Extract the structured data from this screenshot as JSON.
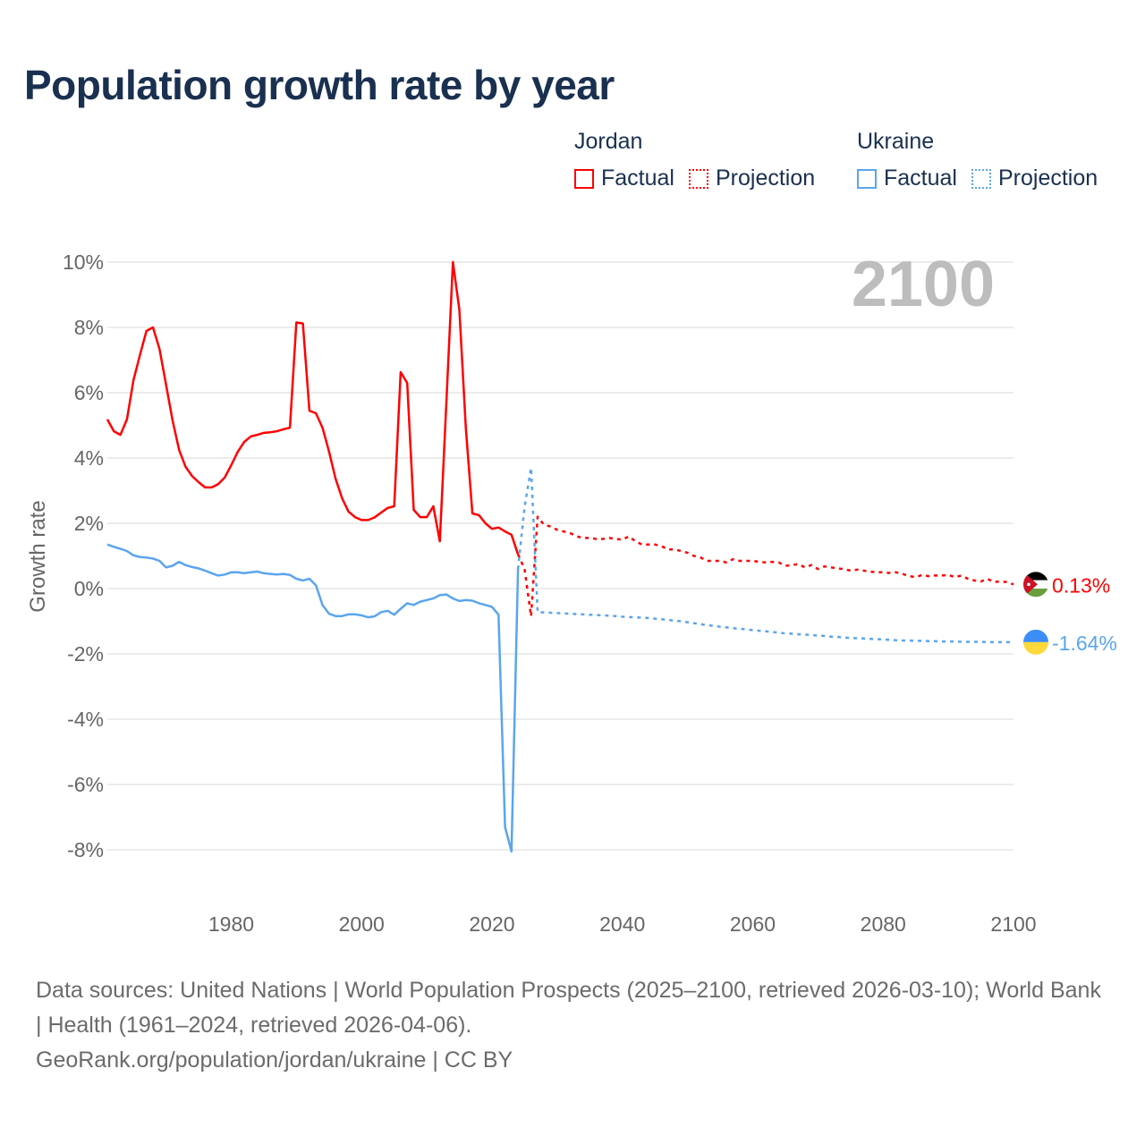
{
  "title": "Population growth rate by year",
  "legend": [
    {
      "country": "Jordan",
      "factual": "Factual",
      "projection": "Projection",
      "color": "#ff0000"
    },
    {
      "country": "Ukraine",
      "factual": "Factual",
      "projection": "Projection",
      "color": "#5aa5ee"
    }
  ],
  "year_display": "2100",
  "footer": {
    "sources": "Data sources: United Nations | World Population Prospects (2025–2100, retrieved 2026-03-10); World Bank | Health (1961–2024, retrieved 2026-04-06).",
    "credit": "GeoRank.org/population/jordan/ukraine | CC BY"
  },
  "chart_data": {
    "type": "line",
    "title": "Population growth rate by year",
    "xlabel": "",
    "ylabel": "Growth rate",
    "xlim": [
      1961,
      2100
    ],
    "ylim": [
      -9,
      10
    ],
    "yticks": [
      10,
      8,
      6,
      4,
      2,
      0,
      -2,
      -4,
      -6,
      -8
    ],
    "ytick_labels": [
      "10%",
      "8%",
      "6%",
      "4%",
      "2%",
      "0%",
      "-2%",
      "-4%",
      "-6%",
      "-8%"
    ],
    "xticks": [
      1980,
      2000,
      2020,
      2040,
      2060,
      2080,
      2100
    ],
    "xtick_labels": [
      "1980",
      "2000",
      "2020",
      "2040",
      "2060",
      "2080",
      "2100"
    ],
    "grid": true,
    "legend_position": "top-right",
    "series": [
      {
        "name": "Jordan",
        "kind": "factual",
        "start_year": 1961,
        "color": "#ff0000",
        "values": [
          5.18,
          4.82,
          4.71,
          5.18,
          6.38,
          7.15,
          7.89,
          8.0,
          7.34,
          6.25,
          5.15,
          4.25,
          3.73,
          3.45,
          3.26,
          3.1,
          3.1,
          3.2,
          3.4,
          3.78,
          4.19,
          4.49,
          4.66,
          4.71,
          4.77,
          4.79,
          4.82,
          4.88,
          4.93,
          8.15,
          8.12,
          5.45,
          5.37,
          4.93,
          4.2,
          3.37,
          2.77,
          2.36,
          2.19,
          2.1,
          2.1,
          2.18,
          2.33,
          2.47,
          2.52,
          6.63,
          6.3,
          2.41,
          2.19,
          2.19,
          2.52,
          1.45,
          5.7,
          10.0,
          8.55,
          4.9,
          2.3,
          2.25,
          2.0,
          1.83,
          1.87,
          1.75,
          1.65,
          1.05
        ]
      },
      {
        "name": "Jordan",
        "kind": "projection",
        "start_year": 2024,
        "color": "#ff0000",
        "values": [
          1.05,
          0.6,
          -0.85,
          2.2,
          1.95,
          1.9,
          1.8,
          1.75,
          1.7,
          1.6,
          1.55,
          1.55,
          1.52,
          1.52,
          1.55,
          1.52,
          1.5,
          1.6,
          1.45,
          1.35,
          1.35,
          1.35,
          1.3,
          1.2,
          1.2,
          1.15,
          1.1,
          1.0,
          0.95,
          0.85,
          0.85,
          0.85,
          0.8,
          0.9,
          0.85,
          0.85,
          0.85,
          0.82,
          0.8,
          0.82,
          0.8,
          0.7,
          0.72,
          0.75,
          0.65,
          0.72,
          0.6,
          0.68,
          0.65,
          0.62,
          0.6,
          0.55,
          0.58,
          0.55,
          0.52,
          0.5,
          0.5,
          0.48,
          0.5,
          0.45,
          0.38,
          0.35,
          0.42,
          0.38,
          0.4,
          0.4,
          0.42,
          0.35,
          0.4,
          0.3,
          0.25,
          0.22,
          0.3,
          0.2,
          0.22,
          0.2,
          0.13
        ]
      },
      {
        "name": "Ukraine",
        "kind": "factual",
        "start_year": 1961,
        "color": "#5aa5ee",
        "values": [
          1.35,
          1.28,
          1.22,
          1.15,
          1.02,
          0.97,
          0.95,
          0.92,
          0.85,
          0.65,
          0.7,
          0.82,
          0.72,
          0.66,
          0.62,
          0.55,
          0.47,
          0.4,
          0.43,
          0.5,
          0.5,
          0.47,
          0.5,
          0.52,
          0.47,
          0.45,
          0.43,
          0.45,
          0.42,
          0.3,
          0.25,
          0.3,
          0.1,
          -0.5,
          -0.77,
          -0.84,
          -0.84,
          -0.79,
          -0.79,
          -0.82,
          -0.88,
          -0.85,
          -0.72,
          -0.68,
          -0.8,
          -0.62,
          -0.45,
          -0.5,
          -0.4,
          -0.35,
          -0.3,
          -0.2,
          -0.18,
          -0.3,
          -0.38,
          -0.35,
          -0.37,
          -0.45,
          -0.5,
          -0.56,
          -0.8,
          -7.3,
          -8.05,
          0.6
        ]
      },
      {
        "name": "Ukraine",
        "kind": "projection",
        "start_year": 2024,
        "color": "#5aa5ee",
        "values": [
          0.6,
          2.5,
          3.7,
          -0.72,
          -0.73,
          -0.74,
          -0.75,
          -0.76,
          -0.77,
          -0.78,
          -0.79,
          -0.8,
          -0.81,
          -0.82,
          -0.83,
          -0.84,
          -0.86,
          -0.87,
          -0.88,
          -0.89,
          -0.9,
          -0.92,
          -0.94,
          -0.96,
          -0.98,
          -1.0,
          -1.03,
          -1.06,
          -1.09,
          -1.12,
          -1.14,
          -1.17,
          -1.19,
          -1.21,
          -1.23,
          -1.25,
          -1.27,
          -1.29,
          -1.31,
          -1.33,
          -1.35,
          -1.37,
          -1.38,
          -1.4,
          -1.41,
          -1.42,
          -1.44,
          -1.45,
          -1.47,
          -1.48,
          -1.5,
          -1.51,
          -1.52,
          -1.53,
          -1.54,
          -1.55,
          -1.56,
          -1.57,
          -1.58,
          -1.59,
          -1.59,
          -1.6,
          -1.6,
          -1.61,
          -1.61,
          -1.62,
          -1.62,
          -1.62,
          -1.63,
          -1.63,
          -1.63,
          -1.63,
          -1.64,
          -1.64,
          -1.64,
          -1.64,
          -1.64
        ]
      }
    ],
    "end_labels": [
      {
        "country": "Jordan",
        "label": "0.13%",
        "value": 0.13,
        "color": "#ff0000"
      },
      {
        "country": "Ukraine",
        "label": "-1.64%",
        "value": -1.64,
        "color": "#5aa5ee"
      }
    ]
  }
}
